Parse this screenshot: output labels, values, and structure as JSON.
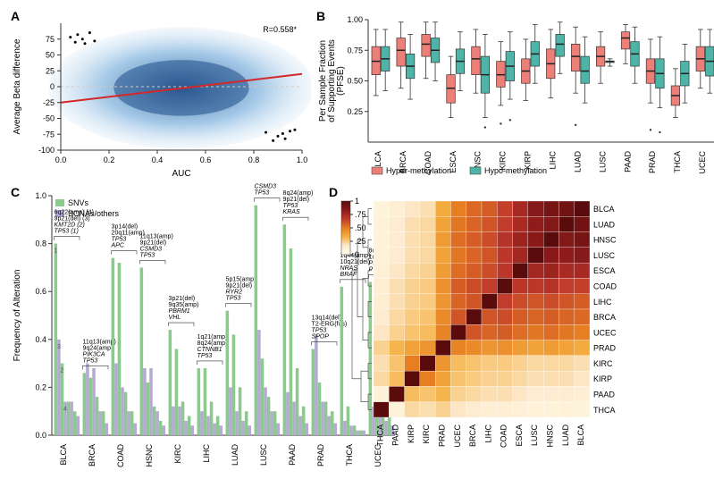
{
  "cancers": [
    "BLCA",
    "BRCA",
    "COAD",
    "ESCA",
    "HNSC",
    "KIRC",
    "KIRP",
    "LIHC",
    "LUAD",
    "LUSC",
    "PAAD",
    "PRAD",
    "THCA",
    "UCEC"
  ],
  "cancers_C": [
    "BLCA",
    "BRCA",
    "COAD",
    "HSNC",
    "KIRC",
    "LIHC",
    "LUAD",
    "LUSC",
    "PAAD",
    "PRAD",
    "THCA",
    "UCEC"
  ],
  "colors": {
    "hyper": "#ed7f79",
    "hypo": "#4eb4a8",
    "snv": "#8cc98f",
    "scna": "#b5abd2",
    "reg_line": "#d62728",
    "zero_line": "#cccccc",
    "density_low": "#f5fbff",
    "density_high": "#1f4f8a",
    "box_text": "#333333",
    "heat_scale": [
      "#5a0c0c",
      "#8b1a1a",
      "#c0392b",
      "#e67e22",
      "#f5b041",
      "#fdebd0",
      "#fffde7"
    ]
  },
  "panelA": {
    "label": "A",
    "xlabel": "AUC",
    "ylabel": "Average Beta difference",
    "r_text": "R=0.558*",
    "xlim": [
      0.0,
      1.0
    ],
    "xticks": [
      0.0,
      0.2,
      0.4,
      0.6,
      0.8,
      1.0
    ],
    "ylim": [
      -100,
      100
    ],
    "yticks": [
      -100,
      -75,
      -50,
      -25,
      0,
      25,
      50,
      75
    ],
    "zero": 0,
    "line": {
      "x0": 0.0,
      "y0": -25,
      "x1": 1.0,
      "y1": 20
    },
    "outliers": [
      [
        0.04,
        78
      ],
      [
        0.07,
        82
      ],
      [
        0.09,
        75
      ],
      [
        0.12,
        85
      ],
      [
        0.14,
        72
      ],
      [
        0.1,
        68
      ],
      [
        0.06,
        70
      ],
      [
        0.9,
        -78
      ],
      [
        0.93,
        -82
      ],
      [
        0.95,
        -70
      ],
      [
        0.88,
        -85
      ],
      [
        0.97,
        -68
      ],
      [
        0.85,
        -72
      ],
      [
        0.92,
        -74
      ]
    ]
  },
  "panelB": {
    "label": "B",
    "ylabel": "Per Sample Fraction\nof Supporting Events\n(PFSE)",
    "legend": [
      "Hyper-methylation",
      "Hypo-methylation"
    ],
    "ylim": [
      0,
      1
    ],
    "yticks": [
      0.25,
      0.5,
      0.75,
      1.0
    ],
    "boxes": {
      "BLCA": {
        "hyper": [
          0.38,
          0.55,
          0.66,
          0.78,
          0.92
        ],
        "hypo": [
          0.42,
          0.58,
          0.68,
          0.78,
          0.92
        ]
      },
      "BRCA": {
        "hyper": [
          0.44,
          0.62,
          0.75,
          0.85,
          0.98
        ],
        "hypo": [
          0.35,
          0.52,
          0.62,
          0.72,
          0.88
        ]
      },
      "COAD": {
        "hyper": [
          0.52,
          0.7,
          0.8,
          0.88,
          0.98
        ],
        "hypo": [
          0.5,
          0.65,
          0.75,
          0.85,
          0.98
        ]
      },
      "ESCA": {
        "hyper": [
          0.2,
          0.32,
          0.44,
          0.55,
          0.7
        ],
        "hypo": [
          0.42,
          0.56,
          0.66,
          0.76,
          0.9
        ]
      },
      "HNSC": {
        "hyper": [
          0.4,
          0.55,
          0.68,
          0.78,
          0.92
        ],
        "hypo": [
          0.2,
          0.4,
          0.55,
          0.7,
          0.88
        ]
      },
      "KIRC": {
        "hyper": [
          0.3,
          0.45,
          0.55,
          0.66,
          0.82
        ],
        "hypo": [
          0.35,
          0.5,
          0.62,
          0.74,
          0.9
        ]
      },
      "KIRP": {
        "hyper": [
          0.34,
          0.48,
          0.58,
          0.68,
          0.84
        ],
        "hypo": [
          0.48,
          0.62,
          0.72,
          0.82,
          0.96
        ]
      },
      "LIHC": {
        "hyper": [
          0.36,
          0.52,
          0.64,
          0.76,
          0.92
        ],
        "hypo": [
          0.56,
          0.7,
          0.8,
          0.88,
          0.98
        ]
      },
      "LUAD": {
        "hyper": [
          0.4,
          0.58,
          0.7,
          0.8,
          0.94
        ],
        "hypo": [
          0.32,
          0.48,
          0.58,
          0.7,
          0.86
        ]
      },
      "LUSC": {
        "hyper": [
          0.48,
          0.62,
          0.7,
          0.78,
          0.9
        ],
        "hypo": [
          0.62,
          0.65,
          0.66,
          0.66,
          0.68
        ]
      },
      "PAAD": {
        "hyper": [
          0.64,
          0.76,
          0.85,
          0.9,
          0.96
        ],
        "hypo": [
          0.48,
          0.62,
          0.72,
          0.82,
          0.94
        ]
      },
      "PRAD": {
        "hyper": [
          0.32,
          0.48,
          0.58,
          0.68,
          0.84
        ],
        "hypo": [
          0.28,
          0.44,
          0.56,
          0.68,
          0.86
        ]
      },
      "THCA": {
        "hyper": [
          0.2,
          0.3,
          0.38,
          0.46,
          0.6
        ],
        "hypo": [
          0.32,
          0.46,
          0.56,
          0.66,
          0.8
        ]
      },
      "UCEC": {
        "hyper": [
          0.44,
          0.58,
          0.68,
          0.78,
          0.92
        ],
        "hypo": [
          0.4,
          0.54,
          0.66,
          0.78,
          0.92
        ]
      }
    }
  },
  "panelC": {
    "label": "C",
    "ylabel": "Frequency of Alteration",
    "legend": [
      "SNVs",
      "SCNAs/others"
    ],
    "ylim": [
      0,
      1
    ],
    "yticks": [
      0.0,
      0.2,
      0.4,
      0.6,
      0.8,
      1.0
    ],
    "bars": {
      "BLCA": {
        "snv": [
          0.8,
          0.3,
          0.14,
          0.1
        ],
        "scna": [
          0.4,
          0.14,
          0.14,
          0.08
        ]
      },
      "BRCA": {
        "snv": [
          0.26,
          0.24,
          0.16,
          0.1
        ],
        "scna": [
          0.3,
          0.28,
          0.1,
          0.05
        ]
      },
      "COAD": {
        "snv": [
          0.74,
          0.72,
          0.18,
          0.1
        ],
        "scna": [
          0.3,
          0.2,
          0.1,
          0.05
        ]
      },
      "HSNC": {
        "snv": [
          0.7,
          0.22,
          0.12,
          0.06
        ],
        "scna": [
          0.28,
          0.28,
          0.1,
          0.04
        ]
      },
      "KIRC": {
        "snv": [
          0.44,
          0.36,
          0.14,
          0.08
        ],
        "scna": [
          0.12,
          0.12,
          0.06,
          0.04
        ]
      },
      "LIHC": {
        "snv": [
          0.28,
          0.28,
          0.14,
          0.08
        ],
        "scna": [
          0.1,
          0.08,
          0.05,
          0.04
        ]
      },
      "LUAD": {
        "snv": [
          0.52,
          0.42,
          0.2,
          0.1
        ],
        "scna": [
          0.2,
          0.1,
          0.06,
          0.04
        ]
      },
      "LUSC": {
        "snv": [
          0.96,
          0.32,
          0.16,
          0.1
        ],
        "scna": [
          0.44,
          0.2,
          0.1,
          0.05
        ]
      },
      "PAAD": {
        "snv": [
          0.88,
          0.78,
          0.28,
          0.12
        ],
        "scna": [
          0.18,
          0.14,
          0.08,
          0.05
        ]
      },
      "PRAD": {
        "snv": [
          0.36,
          0.22,
          0.14,
          0.1
        ],
        "scna": [
          0.42,
          0.14,
          0.08,
          0.05
        ]
      },
      "THCA": {
        "snv": [
          0.62,
          0.12,
          0.04,
          0.02
        ],
        "scna": [
          0.06,
          0.04,
          0.02,
          0.02
        ]
      },
      "UCEC": {
        "snv": [
          0.64,
          0.56,
          0.16,
          0.1
        ],
        "scna": [
          0.12,
          0.08,
          0.06,
          0.04
        ]
      }
    },
    "annotations": {
      "BLCA": {
        "genes": [
          "TP53 (1)",
          "KMT2D (2)"
        ],
        "loci": [
          "9p21(del) (3)",
          "6q22(amp) (4)"
        ]
      },
      "BRCA": {
        "genes": [
          "TP53",
          "PIK3CA"
        ],
        "loci": [
          "9q24(amp)",
          "11q13(amp)"
        ]
      },
      "COAD": {
        "genes": [
          "APC",
          "TP53"
        ],
        "loci": [
          "20q11(amp)",
          "3p14(del)"
        ]
      },
      "HSNC": {
        "genes": [
          "TP53",
          "CSMD3"
        ],
        "loci": [
          "9p21(del)",
          "11q13(amp)"
        ]
      },
      "KIRC": {
        "genes": [
          "VHL",
          "PBRM1"
        ],
        "loci": [
          "9q35(amp)",
          "3p21(del)"
        ]
      },
      "LIHC": {
        "genes": [
          "TP53",
          "CTNNB1"
        ],
        "loci": [
          "8q24(amp)",
          "1q21(amp)"
        ]
      },
      "LUAD": {
        "genes": [
          "TP53",
          "RYR2"
        ],
        "loci": [
          "9p21(del)",
          "5p15(amp)"
        ]
      },
      "LUSC": {
        "genes": [
          "TP53",
          "CSMD3"
        ],
        "loci": [
          "3q26(amp)",
          "8q24(amp)"
        ]
      },
      "PAAD": {
        "genes": [
          "KRAS",
          "TP53"
        ],
        "loci": [
          "9p21(del)",
          "8q24(amp)"
        ]
      },
      "PRAD": {
        "genes": [
          "SPOP",
          "TP53"
        ],
        "loci": [
          "T2-ERG(fus)",
          "13q14(del)"
        ]
      },
      "THCA": {
        "genes": [
          "BRAF",
          "NRAS"
        ],
        "loci": [
          "10q21(del)",
          "1q44(amp)"
        ]
      },
      "UCEC": {
        "genes": [
          "PTEN",
          "PIK3CA"
        ],
        "loci": [
          "1q22(amp)",
          "8q24(amp)"
        ]
      }
    },
    "blca_nums": [
      "1",
      "2",
      "3",
      "4"
    ]
  },
  "panelD": {
    "label": "D",
    "row_order": [
      "BLCA",
      "LUAD",
      "HNSC",
      "LUSC",
      "ESCA",
      "COAD",
      "LIHC",
      "BRCA",
      "UCEC",
      "PRAD",
      "KIRC",
      "KIRP",
      "PAAD",
      "THCA"
    ],
    "col_order": [
      "THCA",
      "PAAD",
      "KIRP",
      "KIRC",
      "PRAD",
      "UCEC",
      "BRCA",
      "LIHC",
      "COAD",
      "ESCA",
      "LUSC",
      "HNSC",
      "LUAD",
      "BLCA"
    ],
    "scale_ticks": [
      0,
      0.25,
      0.5,
      0.75,
      1
    ],
    "matrix": [
      [
        0.08,
        0.14,
        0.18,
        0.2,
        0.35,
        0.5,
        0.55,
        0.58,
        0.65,
        0.75,
        0.85,
        0.9,
        0.92,
        1.0
      ],
      [
        0.1,
        0.16,
        0.2,
        0.22,
        0.38,
        0.52,
        0.56,
        0.6,
        0.66,
        0.74,
        0.82,
        0.86,
        1.0,
        0.92
      ],
      [
        0.1,
        0.16,
        0.2,
        0.22,
        0.4,
        0.54,
        0.58,
        0.62,
        0.7,
        0.78,
        0.84,
        1.0,
        0.86,
        0.9
      ],
      [
        0.1,
        0.16,
        0.2,
        0.22,
        0.38,
        0.52,
        0.56,
        0.6,
        0.68,
        0.76,
        1.0,
        0.84,
        0.82,
        0.85
      ],
      [
        0.12,
        0.18,
        0.22,
        0.24,
        0.4,
        0.54,
        0.58,
        0.62,
        0.68,
        1.0,
        0.76,
        0.78,
        0.74,
        0.75
      ],
      [
        0.14,
        0.2,
        0.24,
        0.26,
        0.44,
        0.58,
        0.62,
        0.66,
        1.0,
        0.68,
        0.68,
        0.7,
        0.66,
        0.65
      ],
      [
        0.14,
        0.2,
        0.24,
        0.26,
        0.42,
        0.56,
        0.6,
        1.0,
        0.66,
        0.62,
        0.6,
        0.62,
        0.6,
        0.58
      ],
      [
        0.16,
        0.22,
        0.26,
        0.28,
        0.46,
        0.6,
        1.0,
        0.6,
        0.62,
        0.58,
        0.56,
        0.58,
        0.56,
        0.55
      ],
      [
        0.18,
        0.24,
        0.28,
        0.3,
        0.48,
        1.0,
        0.6,
        0.56,
        0.58,
        0.54,
        0.52,
        0.54,
        0.52,
        0.5
      ],
      [
        0.24,
        0.32,
        0.38,
        0.42,
        1.0,
        0.48,
        0.46,
        0.42,
        0.44,
        0.4,
        0.38,
        0.4,
        0.38,
        0.35
      ],
      [
        0.2,
        0.28,
        0.5,
        1.0,
        0.42,
        0.3,
        0.28,
        0.26,
        0.26,
        0.24,
        0.22,
        0.22,
        0.22,
        0.2
      ],
      [
        0.22,
        0.3,
        1.0,
        0.5,
        0.38,
        0.28,
        0.26,
        0.24,
        0.24,
        0.22,
        0.2,
        0.2,
        0.2,
        0.18
      ],
      [
        0.1,
        1.0,
        0.3,
        0.28,
        0.32,
        0.24,
        0.22,
        0.2,
        0.2,
        0.18,
        0.16,
        0.16,
        0.16,
        0.14
      ],
      [
        1.0,
        0.1,
        0.22,
        0.2,
        0.24,
        0.18,
        0.16,
        0.14,
        0.14,
        0.12,
        0.1,
        0.1,
        0.1,
        0.08
      ]
    ]
  }
}
